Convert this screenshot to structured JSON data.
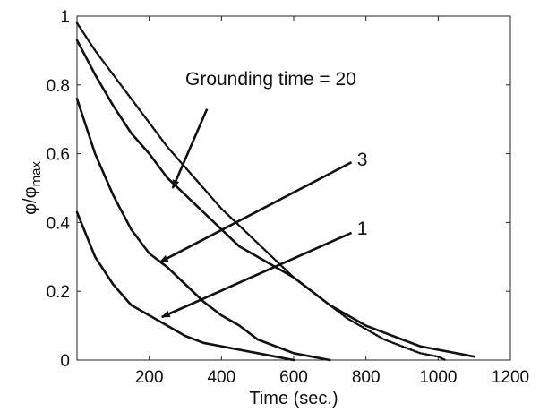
{
  "chart_data": {
    "type": "line",
    "xlabel": "Time (sec.)",
    "ylabel_main": "φ/φ",
    "ylabel_sub": "max",
    "xlim": [
      0,
      1200
    ],
    "ylim": [
      0,
      1
    ],
    "x_ticks": [
      200,
      400,
      600,
      800,
      1000,
      1200
    ],
    "y_ticks": [
      0,
      0.2,
      0.4,
      0.6,
      0.8,
      1
    ],
    "grid": false,
    "series": [
      {
        "style": "dotted",
        "x": [
          0,
          50,
          100,
          150,
          200,
          250,
          300,
          350,
          400,
          450,
          500,
          550,
          600,
          650,
          700,
          750,
          800,
          850,
          900,
          950,
          1000,
          1020
        ],
        "y": [
          0.98,
          0.9,
          0.83,
          0.76,
          0.69,
          0.62,
          0.56,
          0.5,
          0.44,
          0.39,
          0.34,
          0.29,
          0.24,
          0.2,
          0.16,
          0.12,
          0.09,
          0.06,
          0.04,
          0.02,
          0.01,
          0.0
        ]
      },
      {
        "style": "solid",
        "x": [
          0,
          50,
          100,
          150,
          200,
          250,
          300,
          350,
          400,
          450,
          500,
          550,
          600,
          650,
          700,
          750,
          800,
          850,
          900,
          950,
          1000,
          1050,
          1100
        ],
        "y": [
          0.93,
          0.83,
          0.74,
          0.66,
          0.6,
          0.53,
          0.48,
          0.43,
          0.38,
          0.33,
          0.3,
          0.27,
          0.24,
          0.2,
          0.16,
          0.13,
          0.1,
          0.08,
          0.06,
          0.04,
          0.03,
          0.02,
          0.01
        ]
      },
      {
        "style": "solid",
        "x": [
          0,
          50,
          100,
          150,
          200,
          250,
          300,
          350,
          400,
          450,
          500,
          550,
          600,
          650,
          700
        ],
        "y": [
          0.76,
          0.6,
          0.48,
          0.38,
          0.31,
          0.27,
          0.22,
          0.17,
          0.13,
          0.1,
          0.06,
          0.04,
          0.02,
          0.01,
          0.0
        ]
      },
      {
        "style": "solid",
        "x": [
          0,
          50,
          100,
          150,
          200,
          250,
          300,
          350,
          400,
          450,
          500,
          550,
          600
        ],
        "y": [
          0.43,
          0.3,
          0.22,
          0.16,
          0.13,
          0.1,
          0.07,
          0.05,
          0.04,
          0.03,
          0.02,
          0.01,
          0.0
        ]
      }
    ],
    "annotations": [
      {
        "text": "Grounding time = 20",
        "label_at": [
          300,
          0.8
        ],
        "anchor": "start",
        "arrow_from": [
          360,
          0.73
        ],
        "arrow_to": [
          265,
          0.5
        ]
      },
      {
        "text": "3",
        "label_at": [
          790,
          0.565
        ],
        "anchor": "middle",
        "arrow_from": [
          760,
          0.575
        ],
        "arrow_to": [
          230,
          0.285
        ]
      },
      {
        "text": "1",
        "label_at": [
          790,
          0.365
        ],
        "anchor": "middle",
        "arrow_from": [
          760,
          0.37
        ],
        "arrow_to": [
          235,
          0.125
        ]
      }
    ]
  }
}
